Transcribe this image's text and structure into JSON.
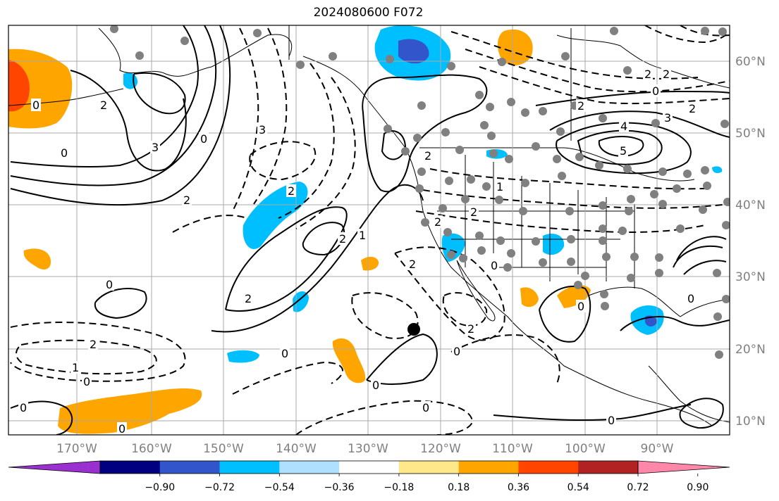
{
  "title": "2024080600 F072",
  "map": {
    "longitude_ticks": [
      "170°W",
      "160°W",
      "150°W",
      "140°W",
      "130°W",
      "120°W",
      "110°W",
      "100°W",
      "90°W"
    ],
    "latitude_ticks": [
      "60°N",
      "50°N",
      "40°N",
      "30°N",
      "20°N",
      "10°N"
    ],
    "contour_labels": [
      "0",
      "1",
      "2",
      "3",
      "4",
      "5"
    ],
    "storm_marker": "black-dot"
  },
  "colorbar": {
    "colors": [
      "#9b30d0",
      "#000080",
      "#3355cc",
      "#00bfff",
      "#b0e0ff",
      "#ffffff",
      "#ffe88a",
      "#ffa500",
      "#ff4500",
      "#b22222",
      "#ff88aa"
    ],
    "tick_labels": [
      "−0.90",
      "−0.72",
      "−0.54",
      "−0.36",
      "−0.18",
      "0.18",
      "0.36",
      "0.54",
      "0.72",
      "0.90"
    ]
  },
  "colors": {
    "station_dot": "#808080",
    "grid": "#a8a8a8"
  }
}
